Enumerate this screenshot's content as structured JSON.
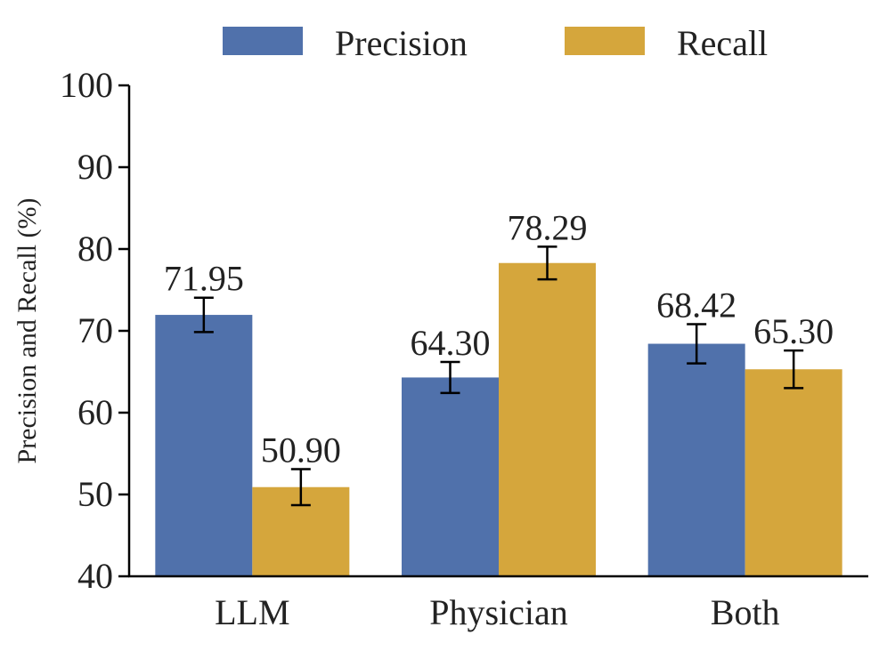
{
  "chart_data": {
    "type": "bar",
    "title": "",
    "xlabel": "",
    "ylabel": "Precision and Recall (%)",
    "ylim": [
      40,
      100
    ],
    "yticks": [
      40,
      50,
      60,
      70,
      80,
      90,
      100
    ],
    "categories": [
      "LLM",
      "Physician",
      "Both"
    ],
    "legend_position": "top",
    "grid": false,
    "series": [
      {
        "name": "Precision",
        "color": "#5071AB",
        "values": [
          71.95,
          64.3,
          68.42
        ],
        "labels": [
          "71.95",
          "64.30",
          "68.42"
        ],
        "errors": [
          2.1,
          1.9,
          2.4
        ]
      },
      {
        "name": "Recall",
        "color": "#D5A63C",
        "values": [
          50.9,
          78.29,
          65.3
        ],
        "labels": [
          "50.90",
          "78.29",
          "65.30"
        ],
        "errors": [
          2.2,
          2.0,
          2.3
        ]
      }
    ]
  }
}
